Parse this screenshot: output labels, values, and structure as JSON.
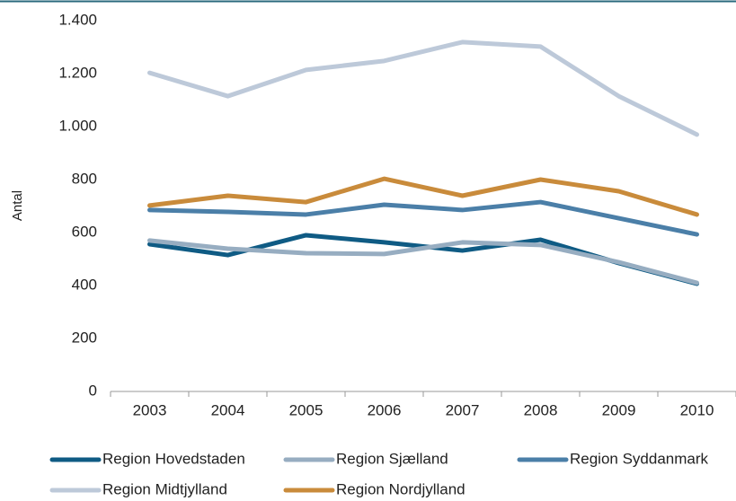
{
  "chart_data": {
    "type": "line",
    "y_label": "Antal",
    "categories": [
      "2003",
      "2004",
      "2005",
      "2006",
      "2007",
      "2008",
      "2009",
      "2010"
    ],
    "series": [
      {
        "name": "Region Hovedstaden",
        "color": "#0f5b84",
        "values": [
          556,
          515,
          590,
          563,
          532,
          573,
          485,
          407
        ]
      },
      {
        "name": "Region Sjælland",
        "color": "#97adc1",
        "values": [
          570,
          539,
          522,
          519,
          563,
          553,
          488,
          410
        ]
      },
      {
        "name": "Region Syddanmark",
        "color": "#4b7fa8",
        "values": [
          685,
          678,
          668,
          705,
          685,
          715,
          654,
          593
        ]
      },
      {
        "name": "Region Midtjylland",
        "color": "#bdc9d9",
        "values": [
          1203,
          1115,
          1214,
          1248,
          1319,
          1302,
          1115,
          970
        ]
      },
      {
        "name": "Region Nordjylland",
        "color": "#c98b3b",
        "values": [
          702,
          739,
          715,
          803,
          739,
          800,
          756,
          668
        ]
      }
    ],
    "ylim": [
      0,
      1400
    ],
    "yticks": [
      0,
      200,
      400,
      600,
      800,
      {
        "value": 1000,
        "label": "1.000"
      },
      {
        "value": 1200,
        "label": "1.200"
      },
      {
        "value": 1400,
        "label": "1.400"
      }
    ],
    "grid": false
  }
}
